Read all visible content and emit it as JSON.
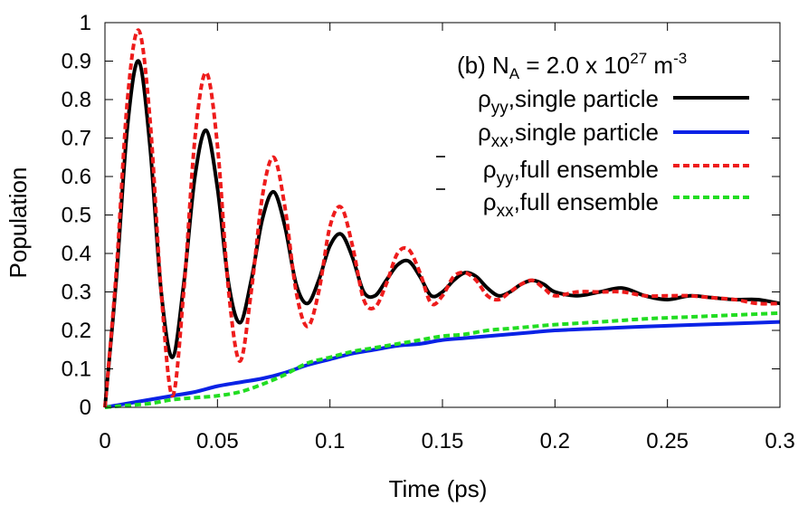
{
  "chart_data": {
    "type": "line",
    "annotation": {
      "prefix": "(b) N",
      "sub": "A",
      "middle": " = 2.0 x 10",
      "sup": "27",
      "unit": " m",
      "unit_sup": "-3"
    },
    "xlabel": "Time (ps)",
    "ylabel": "Population",
    "xlim": [
      0,
      0.3
    ],
    "ylim": [
      0,
      1
    ],
    "x_ticks": [
      "0",
      "0.05",
      "0.1",
      "0.15",
      "0.2",
      "0.25",
      "0.3"
    ],
    "x_tick_values": [
      0,
      0.05,
      0.1,
      0.15,
      0.2,
      0.25,
      0.3
    ],
    "y_ticks": [
      "0",
      "0.1",
      "0.2",
      "0.3",
      "0.4",
      "0.5",
      "0.6",
      "0.7",
      "0.8",
      "0.9",
      "1"
    ],
    "y_tick_values": [
      0,
      0.1,
      0.2,
      0.3,
      0.4,
      0.5,
      0.6,
      0.7,
      0.8,
      0.9,
      1.0
    ],
    "legend_position": "top-right",
    "series": [
      {
        "name": "ρyy,single particle",
        "symbol": "ρ",
        "sub": "yy",
        "desc": ",single particle",
        "bar": false,
        "color": "#000000",
        "style": "solid",
        "x": [
          0,
          0.005,
          0.01,
          0.015,
          0.02,
          0.025,
          0.03,
          0.035,
          0.04,
          0.045,
          0.05,
          0.055,
          0.06,
          0.065,
          0.07,
          0.075,
          0.08,
          0.085,
          0.09,
          0.095,
          0.1,
          0.105,
          0.11,
          0.115,
          0.12,
          0.125,
          0.13,
          0.135,
          0.14,
          0.145,
          0.15,
          0.155,
          0.16,
          0.165,
          0.17,
          0.175,
          0.18,
          0.185,
          0.19,
          0.195,
          0.2,
          0.21,
          0.22,
          0.23,
          0.24,
          0.25,
          0.26,
          0.27,
          0.28,
          0.29,
          0.3
        ],
        "y": [
          0,
          0.33,
          0.73,
          0.9,
          0.68,
          0.3,
          0.13,
          0.32,
          0.6,
          0.72,
          0.57,
          0.32,
          0.22,
          0.33,
          0.49,
          0.56,
          0.47,
          0.32,
          0.27,
          0.33,
          0.42,
          0.45,
          0.39,
          0.3,
          0.29,
          0.33,
          0.37,
          0.38,
          0.34,
          0.29,
          0.3,
          0.33,
          0.35,
          0.34,
          0.31,
          0.29,
          0.3,
          0.32,
          0.33,
          0.32,
          0.3,
          0.29,
          0.3,
          0.31,
          0.29,
          0.28,
          0.29,
          0.285,
          0.28,
          0.28,
          0.27
        ]
      },
      {
        "name": "ρxx,single particle",
        "symbol": "ρ",
        "sub": "xx",
        "desc": ",single particle",
        "bar": false,
        "color": "#0a22e6",
        "style": "solid",
        "x": [
          0,
          0.01,
          0.02,
          0.03,
          0.04,
          0.05,
          0.06,
          0.07,
          0.08,
          0.09,
          0.1,
          0.11,
          0.12,
          0.13,
          0.14,
          0.15,
          0.16,
          0.17,
          0.18,
          0.19,
          0.2,
          0.22,
          0.24,
          0.26,
          0.28,
          0.3
        ],
        "y": [
          0,
          0.01,
          0.02,
          0.03,
          0.04,
          0.055,
          0.065,
          0.075,
          0.09,
          0.11,
          0.125,
          0.14,
          0.15,
          0.16,
          0.165,
          0.175,
          0.18,
          0.185,
          0.19,
          0.195,
          0.2,
          0.205,
          0.21,
          0.214,
          0.218,
          0.222
        ]
      },
      {
        "name": "ρ̄yy,full ensemble",
        "symbol": "ρ",
        "sub": "yy",
        "desc": ",full ensemble",
        "bar": true,
        "color": "#ee1c1c",
        "style": "dashed",
        "x": [
          0,
          0.005,
          0.01,
          0.015,
          0.02,
          0.025,
          0.03,
          0.035,
          0.04,
          0.045,
          0.05,
          0.055,
          0.06,
          0.065,
          0.07,
          0.075,
          0.08,
          0.085,
          0.09,
          0.095,
          0.1,
          0.105,
          0.11,
          0.115,
          0.12,
          0.125,
          0.13,
          0.135,
          0.14,
          0.145,
          0.15,
          0.155,
          0.16,
          0.165,
          0.17,
          0.175,
          0.18,
          0.185,
          0.19,
          0.195,
          0.2,
          0.21,
          0.22,
          0.23,
          0.24,
          0.25,
          0.26,
          0.27,
          0.28,
          0.29,
          0.3
        ],
        "y": [
          0,
          0.35,
          0.8,
          0.98,
          0.75,
          0.3,
          0.03,
          0.3,
          0.7,
          0.87,
          0.68,
          0.3,
          0.12,
          0.3,
          0.55,
          0.65,
          0.52,
          0.3,
          0.21,
          0.3,
          0.47,
          0.52,
          0.42,
          0.28,
          0.26,
          0.32,
          0.4,
          0.41,
          0.35,
          0.27,
          0.29,
          0.34,
          0.35,
          0.33,
          0.29,
          0.28,
          0.3,
          0.32,
          0.33,
          0.31,
          0.29,
          0.3,
          0.3,
          0.3,
          0.29,
          0.29,
          0.29,
          0.285,
          0.28,
          0.27,
          0.27
        ]
      },
      {
        "name": "ρ̄xx,full ensemble",
        "symbol": "ρ",
        "sub": "xx",
        "desc": ",full ensemble",
        "bar": true,
        "color": "#22dd22",
        "style": "dashed",
        "x": [
          0,
          0.01,
          0.02,
          0.03,
          0.04,
          0.05,
          0.06,
          0.07,
          0.08,
          0.09,
          0.1,
          0.11,
          0.12,
          0.13,
          0.14,
          0.15,
          0.16,
          0.17,
          0.18,
          0.19,
          0.2,
          0.22,
          0.24,
          0.26,
          0.28,
          0.3
        ],
        "y": [
          0,
          0.005,
          0.01,
          0.02,
          0.025,
          0.03,
          0.04,
          0.06,
          0.085,
          0.115,
          0.13,
          0.145,
          0.155,
          0.165,
          0.175,
          0.185,
          0.19,
          0.2,
          0.205,
          0.21,
          0.215,
          0.222,
          0.23,
          0.235,
          0.24,
          0.245
        ]
      }
    ]
  }
}
